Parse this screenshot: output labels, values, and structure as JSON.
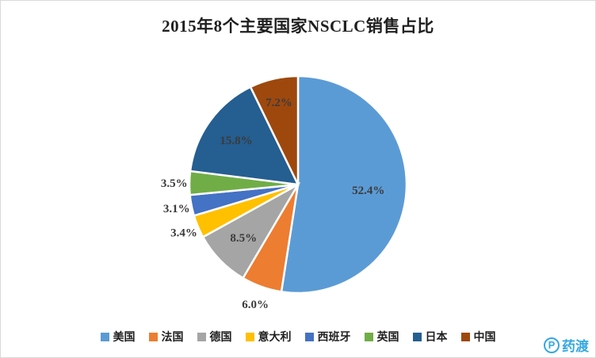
{
  "title": "2015年8个主要国家NSCLC销售占比",
  "chart_data": {
    "type": "pie",
    "title": "2015年8个主要国家NSCLC销售占比",
    "start_angle_deg": -90,
    "direction": "clockwise",
    "legend_position": "bottom",
    "slices": [
      {
        "label": "美国",
        "value": 52.4,
        "display": "52.4%",
        "color": "#5B9BD5",
        "label_placement": "inside",
        "label_radius": 0.65
      },
      {
        "label": "法国",
        "value": 6.0,
        "display": "6.0%",
        "color": "#ED7D31",
        "label_placement": "outside",
        "label_radius": 1.17
      },
      {
        "label": "德国",
        "value": 8.5,
        "display": "8.5%",
        "color": "#A5A5A5",
        "label_placement": "inside",
        "label_radius": 0.7
      },
      {
        "label": "意大利",
        "value": 3.4,
        "display": "3.4%",
        "color": "#FFC000",
        "label_placement": "outside",
        "label_radius": 1.14
      },
      {
        "label": "西班牙",
        "value": 3.1,
        "display": "3.1%",
        "color": "#4472C4",
        "label_placement": "outside",
        "label_radius": 1.14
      },
      {
        "label": "英国",
        "value": 3.5,
        "display": "3.5%",
        "color": "#70AD47",
        "label_placement": "outside",
        "label_radius": 1.14
      },
      {
        "label": "日本",
        "value": 15.8,
        "display": "15.8%",
        "color": "#255E91",
        "label_placement": "inside",
        "label_radius": 0.7
      },
      {
        "label": "中国",
        "value": 7.2,
        "display": "7.2%",
        "color": "#9E480E",
        "label_placement": "inside",
        "label_radius": 0.78
      }
    ]
  },
  "watermark": {
    "logo_letter": "P",
    "text": "药渡",
    "color": "#35A8E0"
  }
}
